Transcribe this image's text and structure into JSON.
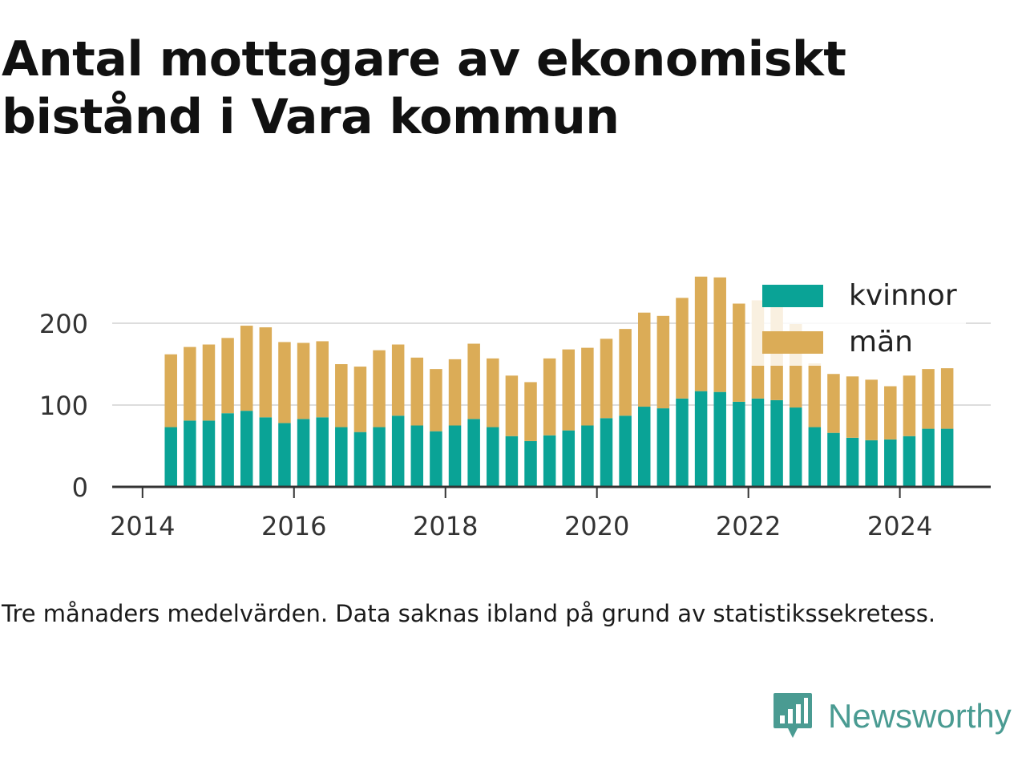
{
  "title": "Antal mottagare av ekonomiskt bistånd i Vara kommun",
  "note": "Tre månaders medelvärden. Data saknas ibland på grund av statistikssekretess.",
  "brand": {
    "name": "Newsworthy",
    "icon": "newsworthy-logo-icon"
  },
  "colors": {
    "kvinnor": "#0aa396",
    "man": "#dbac57",
    "grid": "#dddddd",
    "axis": "#333333",
    "brand": "#4a9b92"
  },
  "chart_data": {
    "type": "bar",
    "stacked": true,
    "xlim": [
      2013.6,
      2025.2
    ],
    "ylim": [
      0,
      260
    ],
    "yticks": [
      0,
      100,
      200
    ],
    "xticks": [
      2014,
      2016,
      2018,
      2020,
      2022,
      2024
    ],
    "grid": "horizontal",
    "legend": "top-right",
    "x": [
      2014.375,
      2014.625,
      2014.875,
      2015.125,
      2015.375,
      2015.625,
      2015.875,
      2016.125,
      2016.375,
      2016.625,
      2016.875,
      2017.125,
      2017.375,
      2017.625,
      2017.875,
      2018.125,
      2018.375,
      2018.625,
      2018.875,
      2019.125,
      2019.375,
      2019.625,
      2019.875,
      2020.125,
      2020.375,
      2020.625,
      2020.875,
      2021.125,
      2021.375,
      2021.625,
      2021.875,
      2022.125,
      2022.375,
      2022.625,
      2022.875,
      2023.125,
      2023.375,
      2023.625,
      2023.875,
      2024.125,
      2024.375,
      2024.625
    ],
    "series": [
      {
        "name": "kvinnor",
        "values": [
          73,
          81,
          81,
          90,
          93,
          85,
          78,
          83,
          85,
          73,
          67,
          73,
          87,
          75,
          68,
          75,
          83,
          73,
          62,
          56,
          63,
          69,
          75,
          84,
          87,
          98,
          96,
          108,
          117,
          116,
          104,
          108,
          106,
          97,
          73,
          66,
          60,
          57,
          58,
          62,
          71,
          71
        ]
      },
      {
        "name": "män",
        "values": [
          89,
          90,
          93,
          92,
          104,
          110,
          99,
          93,
          93,
          77,
          80,
          94,
          87,
          83,
          76,
          81,
          92,
          84,
          74,
          72,
          94,
          99,
          95,
          97,
          106,
          115,
          113,
          123,
          140,
          140,
          120,
          120,
          120,
          102,
          78,
          72,
          75,
          74,
          65,
          74,
          73,
          74
        ]
      }
    ]
  }
}
